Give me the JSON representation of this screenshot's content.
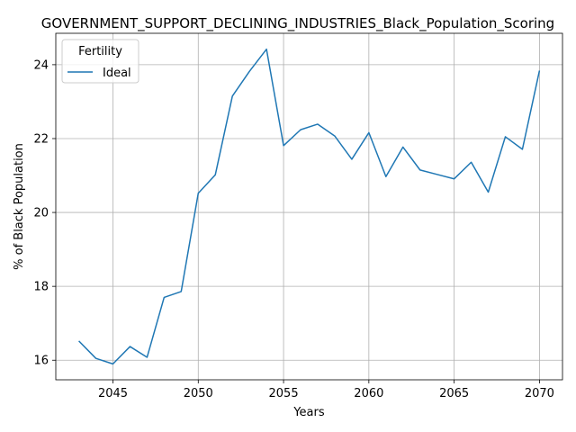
{
  "chart_data": {
    "type": "line",
    "title": "GOVERNMENT_SUPPORT_DECLINING_INDUSTRIES_Black_Population_Scoring",
    "xlabel": "Years",
    "ylabel": "% of Black Population",
    "xlim": [
      2041.65,
      2071.35
    ],
    "ylim": [
      15.47,
      24.85
    ],
    "xticks": [
      2045,
      2050,
      2055,
      2060,
      2065,
      2070
    ],
    "yticks": [
      16,
      18,
      20,
      22,
      24
    ],
    "grid": true,
    "legend": {
      "title": "Fertility",
      "position": "top-left"
    },
    "series": [
      {
        "name": "Ideal",
        "color": "#1f77b4",
        "x": [
          2043,
          2044,
          2045,
          2046,
          2047,
          2048,
          2049,
          2050,
          2051,
          2052,
          2053,
          2054,
          2055,
          2056,
          2057,
          2058,
          2059,
          2060,
          2061,
          2062,
          2063,
          2064,
          2065,
          2066,
          2067,
          2068,
          2069,
          2070
        ],
        "y": [
          16.52,
          16.05,
          15.9,
          16.37,
          16.08,
          17.7,
          17.86,
          20.52,
          21.02,
          23.15,
          23.82,
          24.42,
          21.81,
          22.24,
          22.39,
          22.07,
          21.44,
          22.16,
          20.97,
          21.77,
          21.15,
          21.03,
          20.91,
          21.36,
          20.55,
          22.05,
          21.71,
          23.84
        ]
      }
    ]
  }
}
